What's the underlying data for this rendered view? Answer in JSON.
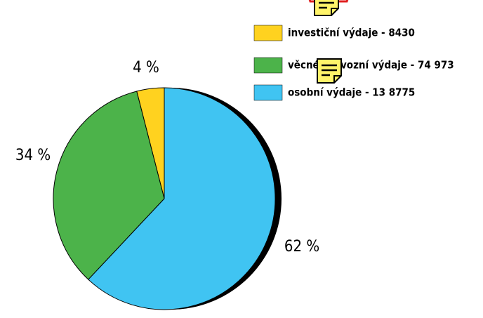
{
  "chart_data": {
    "type": "pie",
    "categories": [
      "investiční výdaje - 8430",
      "věcné provozní výdaje - 74 973",
      "osobní výdaje - 13 8775"
    ],
    "values": [
      4,
      34,
      62
    ],
    "value_labels": [
      "4 %",
      "34 %",
      "62 %"
    ],
    "colors": [
      "#ffd21f",
      "#4cb34a",
      "#40c4f2"
    ],
    "legend": "top-right"
  }
}
